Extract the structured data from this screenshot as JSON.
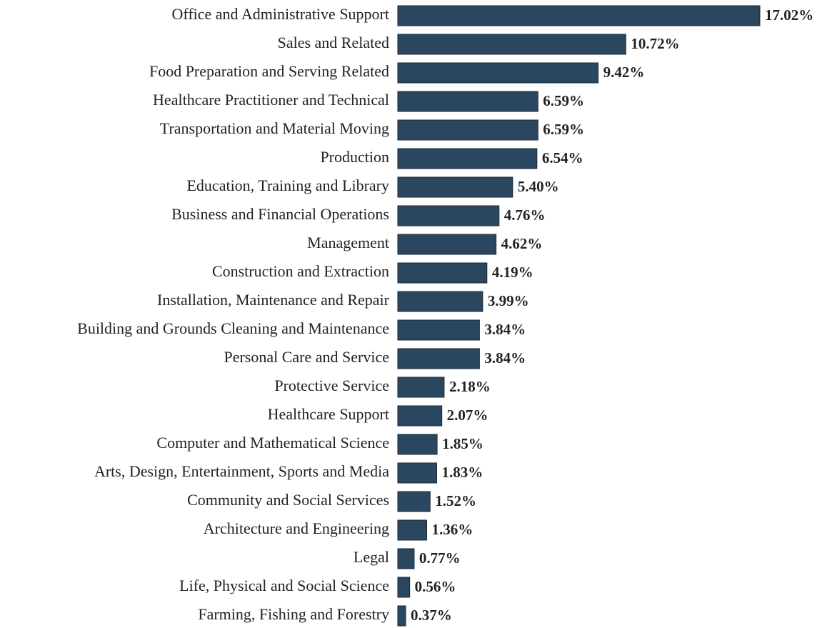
{
  "chart_data": {
    "type": "bar",
    "orientation": "horizontal",
    "color": "#2b4760",
    "categories": [
      "Office and Administrative Support",
      "Sales and Related",
      "Food Preparation and Serving Related",
      "Healthcare Practitioner and Technical",
      "Transportation and Material Moving",
      "Production",
      "Education, Training and Library",
      "Business and Financial Operations",
      "Management",
      "Construction and Extraction",
      "Installation, Maintenance and Repair",
      "Building and Grounds Cleaning and Maintenance",
      "Personal Care and Service",
      "Protective Service",
      "Healthcare Support",
      "Computer and Mathematical Science",
      "Arts, Design, Entertainment, Sports and Media",
      "Community and Social Services",
      "Architecture and Engineering",
      "Legal",
      "Life, Physical and Social Science",
      "Farming, Fishing and Forestry"
    ],
    "values": [
      17.02,
      10.72,
      9.42,
      6.59,
      6.59,
      6.54,
      5.4,
      4.76,
      4.62,
      4.19,
      3.99,
      3.84,
      3.84,
      2.18,
      2.07,
      1.85,
      1.83,
      1.52,
      1.36,
      0.77,
      0.56,
      0.37
    ],
    "value_labels": [
      "17.02%",
      "10.72%",
      "9.42%",
      "6.59%",
      "6.59%",
      "6.54%",
      "5.40%",
      "4.76%",
      "4.62%",
      "4.19%",
      "3.99%",
      "3.84%",
      "3.84%",
      "2.18%",
      "2.07%",
      "1.85%",
      "1.83%",
      "1.52%",
      "1.36%",
      "0.77%",
      "0.56%",
      "0.37%"
    ]
  }
}
